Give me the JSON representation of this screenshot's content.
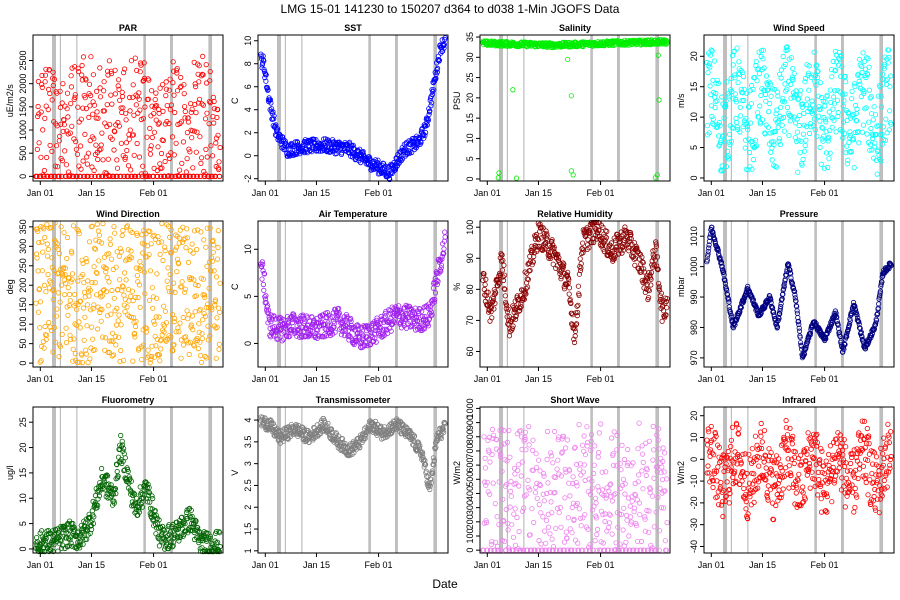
{
  "figure": {
    "title": "LMG   15-01    141230 to 150207    d364 to d038   1-Min  JGOFS Data",
    "xlabel": "Date"
  },
  "chart_data": [
    {
      "type": "scatter",
      "title": "PAR",
      "ylabel": "uE/m2/s",
      "ylim": [
        -100,
        3050
      ],
      "yticks": [
        0,
        500,
        1000,
        1500,
        2000,
        2500
      ],
      "xticks": [
        "Jan 01",
        "Jan 15",
        "Feb 01"
      ],
      "color": "#ff0000",
      "pattern": "diurnal",
      "base": 0,
      "peak": 2600,
      "noise": 0.15
    },
    {
      "type": "scatter",
      "title": "SST",
      "ylabel": "C",
      "ylim": [
        -2.2,
        10.5
      ],
      "yticks": [
        -2,
        0,
        2,
        4,
        6,
        8,
        10
      ],
      "xticks": [
        "Jan 01",
        "Jan 15",
        "Feb 01"
      ],
      "color": "#0000ff",
      "pattern": "series",
      "points": [
        [
          0,
          8.6
        ],
        [
          1.5,
          8.1
        ],
        [
          3,
          5
        ],
        [
          5,
          2
        ],
        [
          8,
          0.5
        ],
        [
          12,
          0.8
        ],
        [
          18,
          0.9
        ],
        [
          25,
          0.6
        ],
        [
          30,
          -0.5
        ],
        [
          36,
          -1.5
        ],
        [
          40,
          0.5
        ],
        [
          44,
          1.2
        ],
        [
          46,
          2.5
        ],
        [
          48,
          6
        ],
        [
          50,
          9.5
        ],
        [
          52,
          10.1
        ]
      ],
      "noise": 0.6
    },
    {
      "type": "scatter",
      "title": "Salinity",
      "ylabel": "PSU",
      "ylim": [
        -0.5,
        35.5
      ],
      "yticks": [
        0,
        5,
        10,
        15,
        20,
        25,
        30,
        35
      ],
      "xticks": [
        "Jan 01",
        "Jan 15",
        "Feb 01"
      ],
      "color": "#00ee00",
      "pattern": "series",
      "points": [
        [
          0,
          33.5
        ],
        [
          20,
          33
        ],
        [
          40,
          33.6
        ],
        [
          52,
          33.8
        ]
      ],
      "noise": 0.6,
      "outliers": [
        [
          5,
          0.3
        ],
        [
          5.2,
          1.5
        ],
        [
          9,
          22
        ],
        [
          10,
          0.2
        ],
        [
          24,
          29.5
        ],
        [
          25,
          20.5
        ],
        [
          25,
          2
        ],
        [
          25.5,
          1
        ],
        [
          48,
          0.3
        ],
        [
          48.5,
          1
        ],
        [
          49,
          19.5
        ],
        [
          48.8,
          30.5
        ]
      ]
    },
    {
      "type": "scatter",
      "title": "Wind Speed",
      "ylabel": "m/s",
      "ylim": [
        -0.5,
        23.5
      ],
      "yticks": [
        0,
        5,
        10,
        15,
        20
      ],
      "xticks": [
        "Jan 01",
        "Jan 15",
        "Feb 01"
      ],
      "color": "#00ffff",
      "pattern": "noisy",
      "base": 3,
      "peak": 19,
      "noise": 1
    },
    {
      "type": "scatter",
      "title": "Wind Direction",
      "ylabel": "deg",
      "ylim": [
        -10,
        365
      ],
      "yticks": [
        0,
        50,
        100,
        150,
        200,
        250,
        300,
        350
      ],
      "xticks": [
        "Jan 01",
        "Jan 15",
        "Feb 01"
      ],
      "color": "#ffa500",
      "pattern": "uniform",
      "base": 0,
      "peak": 360,
      "noise": 1
    },
    {
      "type": "scatter",
      "title": "Air Temperature",
      "ylabel": "C",
      "ylim": [
        -2.5,
        13
      ],
      "yticks": [
        0,
        5,
        10
      ],
      "xticks": [
        "Jan 01",
        "Jan 15",
        "Feb 01"
      ],
      "color": "#a020f0",
      "pattern": "series",
      "points": [
        [
          0,
          9.5
        ],
        [
          1.5,
          7
        ],
        [
          3,
          2
        ],
        [
          6,
          1.5
        ],
        [
          10,
          2
        ],
        [
          16,
          1.5
        ],
        [
          22,
          2.5
        ],
        [
          28,
          0.5
        ],
        [
          33,
          1.5
        ],
        [
          38,
          3
        ],
        [
          44,
          2.5
        ],
        [
          47,
          3
        ],
        [
          49,
          7
        ],
        [
          52,
          12.3
        ]
      ],
      "noise": 1.3
    },
    {
      "type": "scatter",
      "title": "Relative Humidity",
      "ylabel": "%",
      "ylim": [
        55,
        102
      ],
      "yticks": [
        60,
        70,
        80,
        90,
        100
      ],
      "xticks": [
        "Jan 01",
        "Jan 15",
        "Feb 01"
      ],
      "color": "#8b0000",
      "pattern": "series",
      "points": [
        [
          0,
          88
        ],
        [
          3,
          72
        ],
        [
          6,
          90
        ],
        [
          8,
          68
        ],
        [
          12,
          80
        ],
        [
          16,
          98
        ],
        [
          20,
          92
        ],
        [
          24,
          82
        ],
        [
          26,
          65
        ],
        [
          28,
          95
        ],
        [
          32,
          100
        ],
        [
          36,
          92
        ],
        [
          40,
          97
        ],
        [
          44,
          88
        ],
        [
          46,
          80
        ],
        [
          48,
          93
        ],
        [
          50,
          72
        ],
        [
          52,
          80
        ]
      ],
      "noise": 4
    },
    {
      "type": "scatter",
      "title": "Pressure",
      "ylabel": "mbar",
      "ylim": [
        967,
        1015
      ],
      "yticks": [
        970,
        980,
        990,
        1000,
        1010
      ],
      "xticks": [
        "Jan 01",
        "Jan 15",
        "Feb 01"
      ],
      "color": "#000080",
      "pattern": "series",
      "points": [
        [
          0,
          994
        ],
        [
          2,
          1013
        ],
        [
          5,
          1000
        ],
        [
          8,
          980
        ],
        [
          12,
          993
        ],
        [
          15,
          984
        ],
        [
          18,
          990
        ],
        [
          20,
          980
        ],
        [
          23,
          1001
        ],
        [
          25,
          990
        ],
        [
          27,
          970
        ],
        [
          30,
          982
        ],
        [
          33,
          976
        ],
        [
          36,
          985
        ],
        [
          38,
          972
        ],
        [
          41,
          988
        ],
        [
          44,
          973
        ],
        [
          47,
          981
        ],
        [
          49,
          998
        ],
        [
          52,
          1002
        ]
      ],
      "noise": 0.8
    },
    {
      "type": "scatter",
      "title": "Fluorometry",
      "ylabel": "ug/l",
      "ylim": [
        -0.8,
        28
      ],
      "yticks": [
        0,
        5,
        10,
        15,
        20,
        25
      ],
      "xticks": [
        "Jan 01",
        "Jan 15",
        "Feb 01"
      ],
      "color": "#006400",
      "pattern": "series",
      "points": [
        [
          0,
          1
        ],
        [
          6,
          1.5
        ],
        [
          10,
          3
        ],
        [
          13,
          2
        ],
        [
          16,
          6
        ],
        [
          19,
          14
        ],
        [
          22,
          10
        ],
        [
          24,
          20
        ],
        [
          26,
          14
        ],
        [
          28,
          8
        ],
        [
          31,
          12
        ],
        [
          35,
          2
        ],
        [
          39,
          3
        ],
        [
          43,
          6
        ],
        [
          46,
          1
        ],
        [
          52,
          1
        ]
      ],
      "noise": 2.5
    },
    {
      "type": "scatter",
      "title": "Transmissometer",
      "ylabel": "V",
      "ylim": [
        0.95,
        4.3
      ],
      "yticks": [
        1,
        1.5,
        2,
        2.5,
        3,
        3.5,
        4
      ],
      "xticks": [
        "Jan 01",
        "Jan 15",
        "Feb 01"
      ],
      "color": "#808080",
      "pattern": "series",
      "points": [
        [
          0,
          4
        ],
        [
          3,
          3.9
        ],
        [
          6,
          3.6
        ],
        [
          10,
          3.8
        ],
        [
          14,
          3.6
        ],
        [
          18,
          3.9
        ],
        [
          22,
          3.5
        ],
        [
          25,
          3.3
        ],
        [
          28,
          3.5
        ],
        [
          31,
          3.9
        ],
        [
          34,
          3.7
        ],
        [
          38,
          3.9
        ],
        [
          42,
          3.6
        ],
        [
          45,
          3.2
        ],
        [
          47,
          2.4
        ],
        [
          49,
          3.6
        ],
        [
          52,
          3.9
        ]
      ],
      "noise": 0.15
    },
    {
      "type": "scatter",
      "title": "Short Wave",
      "ylabel": "W/m2",
      "ylim": [
        -20,
        1010
      ],
      "yticks": [
        0,
        100,
        200,
        300,
        400,
        500,
        600,
        700,
        800,
        900,
        1000
      ],
      "xticks": [
        "Jan 01",
        "Jan 15",
        "Feb 01"
      ],
      "color": "#ee82ee",
      "pattern": "diurnal",
      "base": 0,
      "peak": 900,
      "noise": 0.2
    },
    {
      "type": "scatter",
      "title": "Infrared",
      "ylabel": "W/m2",
      "ylim": [
        -43,
        24
      ],
      "yticks": [
        -40,
        -30,
        -20,
        -10,
        0,
        10,
        20
      ],
      "xticks": [
        "Jan 01",
        "Jan 15",
        "Feb 01"
      ],
      "color": "#ff0000",
      "pattern": "noisy",
      "base": -22,
      "peak": 12,
      "noise": 1
    }
  ]
}
